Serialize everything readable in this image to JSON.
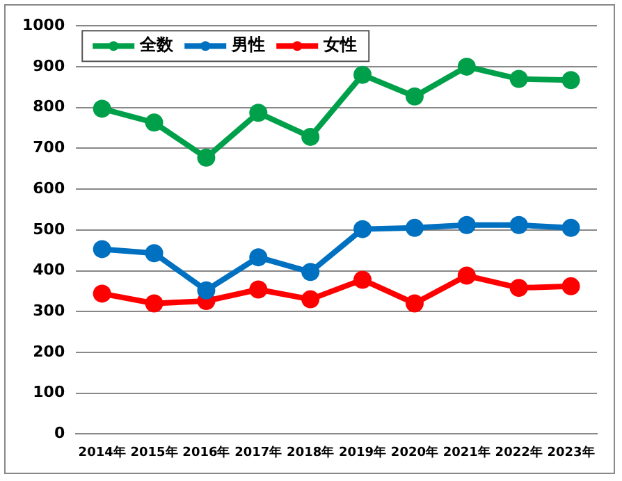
{
  "chart_data": {
    "type": "line",
    "categories": [
      "2014年",
      "2015年",
      "2016年",
      "2017年",
      "2018年",
      "2019年",
      "2020年",
      "2021年",
      "2022年",
      "2023年"
    ],
    "series": [
      {
        "name": "全数",
        "color": "#00a04a",
        "values": [
          797,
          763,
          677,
          787,
          728,
          880,
          827,
          900,
          870,
          867
        ]
      },
      {
        "name": "男性",
        "color": "#0070c0",
        "values": [
          453,
          443,
          352,
          433,
          397,
          502,
          505,
          512,
          512,
          505
        ]
      },
      {
        "name": "女性",
        "color": "#ff0000",
        "values": [
          344,
          320,
          326,
          354,
          330,
          378,
          320,
          388,
          358,
          362
        ]
      }
    ],
    "ylim": [
      0,
      1000
    ],
    "yticks": [
      0,
      100,
      200,
      300,
      400,
      500,
      600,
      700,
      800,
      900,
      1000
    ],
    "grid": "y",
    "legend": "top left",
    "marker": "circle",
    "line_style": "solid"
  }
}
